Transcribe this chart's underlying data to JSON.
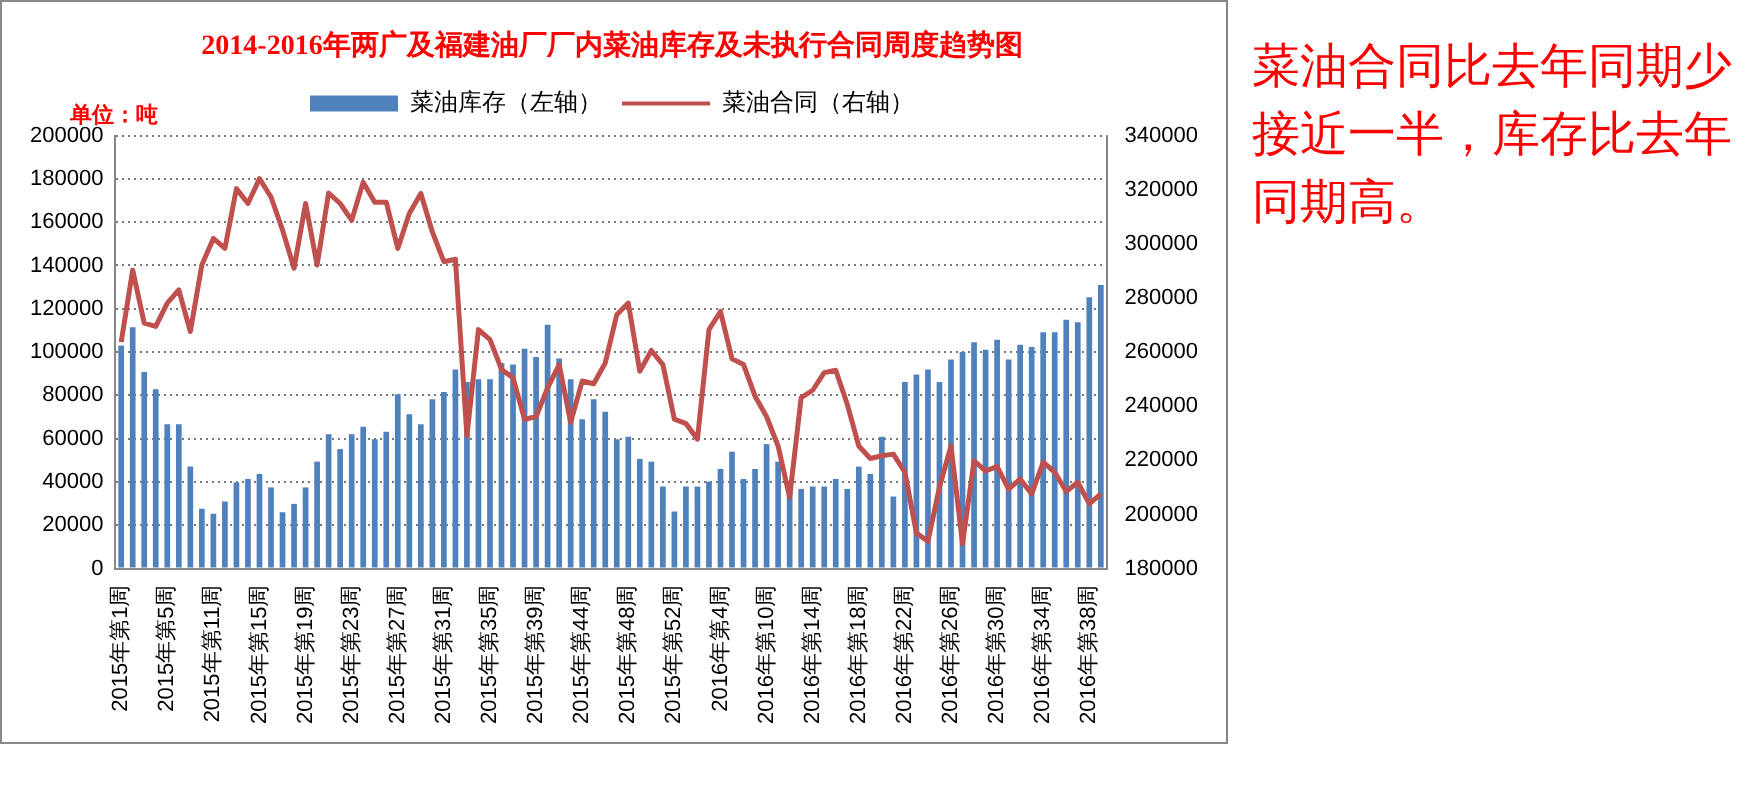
{
  "chart_data": {
    "type": "bar",
    "title": "2014-2016年两广及福建油厂厂内菜油库存及未执行合同周度趋势图",
    "annotations": [
      "单位：吨",
      "菜油合同比去年同期少接近一半，库存比去年同期高。"
    ],
    "categories": [
      "2015年第1周",
      null,
      null,
      null,
      "2015年第5周",
      null,
      null,
      null,
      "2015年第11周",
      null,
      null,
      null,
      "2015年第15周",
      null,
      null,
      null,
      "2015年第19周",
      null,
      null,
      null,
      "2015年第23周",
      null,
      null,
      null,
      "2015年第27周",
      null,
      null,
      null,
      "2015年第31周",
      null,
      null,
      null,
      "2015年第35周",
      null,
      null,
      null,
      "2015年第39周",
      null,
      null,
      null,
      "2015年第44周",
      null,
      null,
      null,
      "2015年第48周",
      null,
      null,
      null,
      "2015年第52周",
      null,
      null,
      null,
      "2016年第4周",
      null,
      null,
      null,
      "2016年第10周",
      null,
      null,
      null,
      "2016年第14周",
      null,
      null,
      null,
      "2016年第18周",
      null,
      null,
      null,
      "2016年第22周",
      null,
      null,
      null,
      "2016年第26周",
      null,
      null,
      null,
      "2016年第30周",
      null,
      null,
      null,
      "2016年第34周",
      null,
      null,
      null,
      "2016年第38周",
      null
    ],
    "series": [
      {
        "name": "菜油库存（左轴）",
        "color": "#4f81bd",
        "values": [
          103000,
          111500,
          90800,
          82800,
          66700,
          66700,
          47100,
          27600,
          25300,
          31000,
          39800,
          41400,
          43700,
          37500,
          26000,
          29900,
          37500,
          49400,
          62100,
          55200,
          62100,
          65500,
          59800,
          63200,
          80500,
          71300,
          66700,
          78200,
          81600,
          92000,
          86200,
          87400,
          87400,
          95000,
          94300,
          101600,
          97700,
          112600,
          97000,
          87400,
          69000,
          78200,
          72400,
          59800,
          60900,
          50600,
          49400,
          37900,
          26400,
          37900,
          37900,
          40200,
          46000,
          54000,
          41400,
          46000,
          57500,
          49400,
          36800,
          36800,
          37900,
          37900,
          41400,
          36800,
          47100,
          43700,
          60900,
          33300,
          86200,
          89700,
          92000,
          86200,
          96600,
          100000,
          104600,
          101100,
          105700,
          96600,
          103400,
          102300,
          109200,
          109200,
          114900,
          113800,
          125300,
          131000
        ]
      },
      {
        "name": "菜油合同（右轴）",
        "type": "line",
        "axis": "y2",
        "color": "#c0504d",
        "values": [
          263700,
          290300,
          270700,
          269500,
          278100,
          283000,
          267600,
          292200,
          302000,
          298300,
          320400,
          314900,
          324100,
          317300,
          305100,
          291000,
          314900,
          292200,
          318800,
          314900,
          308700,
          322800,
          315400,
          315400,
          298300,
          311200,
          318600,
          304400,
          293400,
          294300,
          229000,
          268300,
          264600,
          253600,
          250500,
          235200,
          236100,
          246800,
          255400,
          234000,
          249300,
          248300,
          256000,
          273800,
          278100,
          252900,
          260600,
          255400,
          235200,
          233600,
          227800,
          268300,
          275000,
          257500,
          255400,
          243700,
          236100,
          225300,
          206400,
          243200,
          245900,
          252400,
          253300,
          240700,
          225300,
          220700,
          221700,
          222300,
          215600,
          193100,
          190100,
          210100,
          225300,
          189200,
          219800,
          216100,
          217700,
          209400,
          213100,
          207600,
          219300,
          215600,
          208500,
          211900,
          203900,
          207600
        ]
      }
    ],
    "ylim": [
      0,
      200000
    ],
    "yticks": [
      0,
      20000,
      40000,
      60000,
      80000,
      100000,
      120000,
      140000,
      160000,
      180000,
      200000
    ],
    "y2lim": [
      180000,
      340000
    ],
    "y2ticks": [
      180000,
      200000,
      220000,
      240000,
      260000,
      280000,
      300000,
      320000,
      340000
    ],
    "grid": "y",
    "legend": "top",
    "marker": "none",
    "line_style": "solid"
  }
}
